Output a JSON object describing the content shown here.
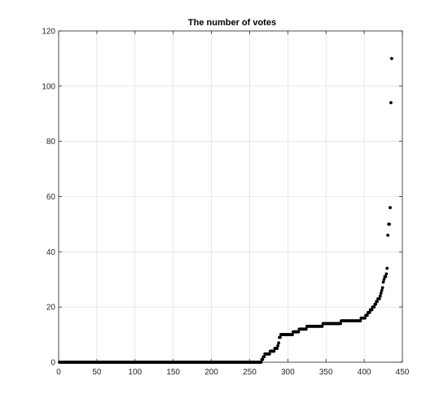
{
  "chart_data": {
    "type": "scatter",
    "title": "The number of votes",
    "xlabel": "",
    "ylabel": "",
    "xlim": [
      0,
      450
    ],
    "ylim": [
      0,
      120
    ],
    "x_ticks": [
      0,
      50,
      100,
      150,
      200,
      250,
      300,
      350,
      400,
      450
    ],
    "y_ticks": [
      0,
      20,
      40,
      60,
      80,
      100,
      120
    ],
    "grid": true,
    "marker_color": "#000000",
    "series": [
      {
        "segments": [
          {
            "x_start": 1,
            "x_end": 265,
            "value": 0
          },
          {
            "x_start": 266,
            "x_end": 267,
            "value": 1
          },
          {
            "x_start": 268,
            "x_end": 269,
            "value": 2
          },
          {
            "x_start": 270,
            "x_end": 276,
            "value": 3
          },
          {
            "x_start": 277,
            "x_end": 282,
            "value": 4
          },
          {
            "x_start": 283,
            "x_end": 286,
            "value": 5
          },
          {
            "x_start": 287,
            "x_end": 287,
            "value": 6
          },
          {
            "x_start": 288,
            "x_end": 288,
            "value": 7
          },
          {
            "x_start": 289,
            "x_end": 290,
            "value": 9
          },
          {
            "x_start": 291,
            "x_end": 306,
            "value": 10
          },
          {
            "x_start": 307,
            "x_end": 314,
            "value": 11
          },
          {
            "x_start": 315,
            "x_end": 324,
            "value": 12
          },
          {
            "x_start": 325,
            "x_end": 345,
            "value": 13
          },
          {
            "x_start": 346,
            "x_end": 369,
            "value": 14
          },
          {
            "x_start": 370,
            "x_end": 395,
            "value": 15
          },
          {
            "x_start": 396,
            "x_end": 401,
            "value": 16
          },
          {
            "x_start": 402,
            "x_end": 404,
            "value": 17
          },
          {
            "x_start": 405,
            "x_end": 407,
            "value": 18
          },
          {
            "x_start": 408,
            "x_end": 410,
            "value": 19
          },
          {
            "x_start": 411,
            "x_end": 413,
            "value": 20
          },
          {
            "x_start": 414,
            "x_end": 415,
            "value": 21
          },
          {
            "x_start": 416,
            "x_end": 417,
            "value": 22
          },
          {
            "x_start": 418,
            "x_end": 420,
            "value": 23
          },
          {
            "x_start": 421,
            "x_end": 421,
            "value": 24
          },
          {
            "x_start": 422,
            "x_end": 422,
            "value": 25
          },
          {
            "x_start": 423,
            "x_end": 423,
            "value": 26
          },
          {
            "x_start": 424,
            "x_end": 424,
            "value": 27
          },
          {
            "x_start": 425,
            "x_end": 425,
            "value": 29
          },
          {
            "x_start": 426,
            "x_end": 426,
            "value": 30
          },
          {
            "x_start": 427,
            "x_end": 428,
            "value": 31
          },
          {
            "x_start": 429,
            "x_end": 429,
            "value": 32
          },
          {
            "x_start": 430,
            "x_end": 430,
            "value": 34
          },
          {
            "x_start": 431,
            "x_end": 431,
            "value": 46
          },
          {
            "x_start": 432,
            "x_end": 433,
            "value": 50
          },
          {
            "x_start": 434,
            "x_end": 434,
            "value": 56
          },
          {
            "x_start": 435,
            "x_end": 435,
            "value": 94
          },
          {
            "x_start": 436,
            "x_end": 436,
            "value": 110
          }
        ]
      }
    ]
  }
}
